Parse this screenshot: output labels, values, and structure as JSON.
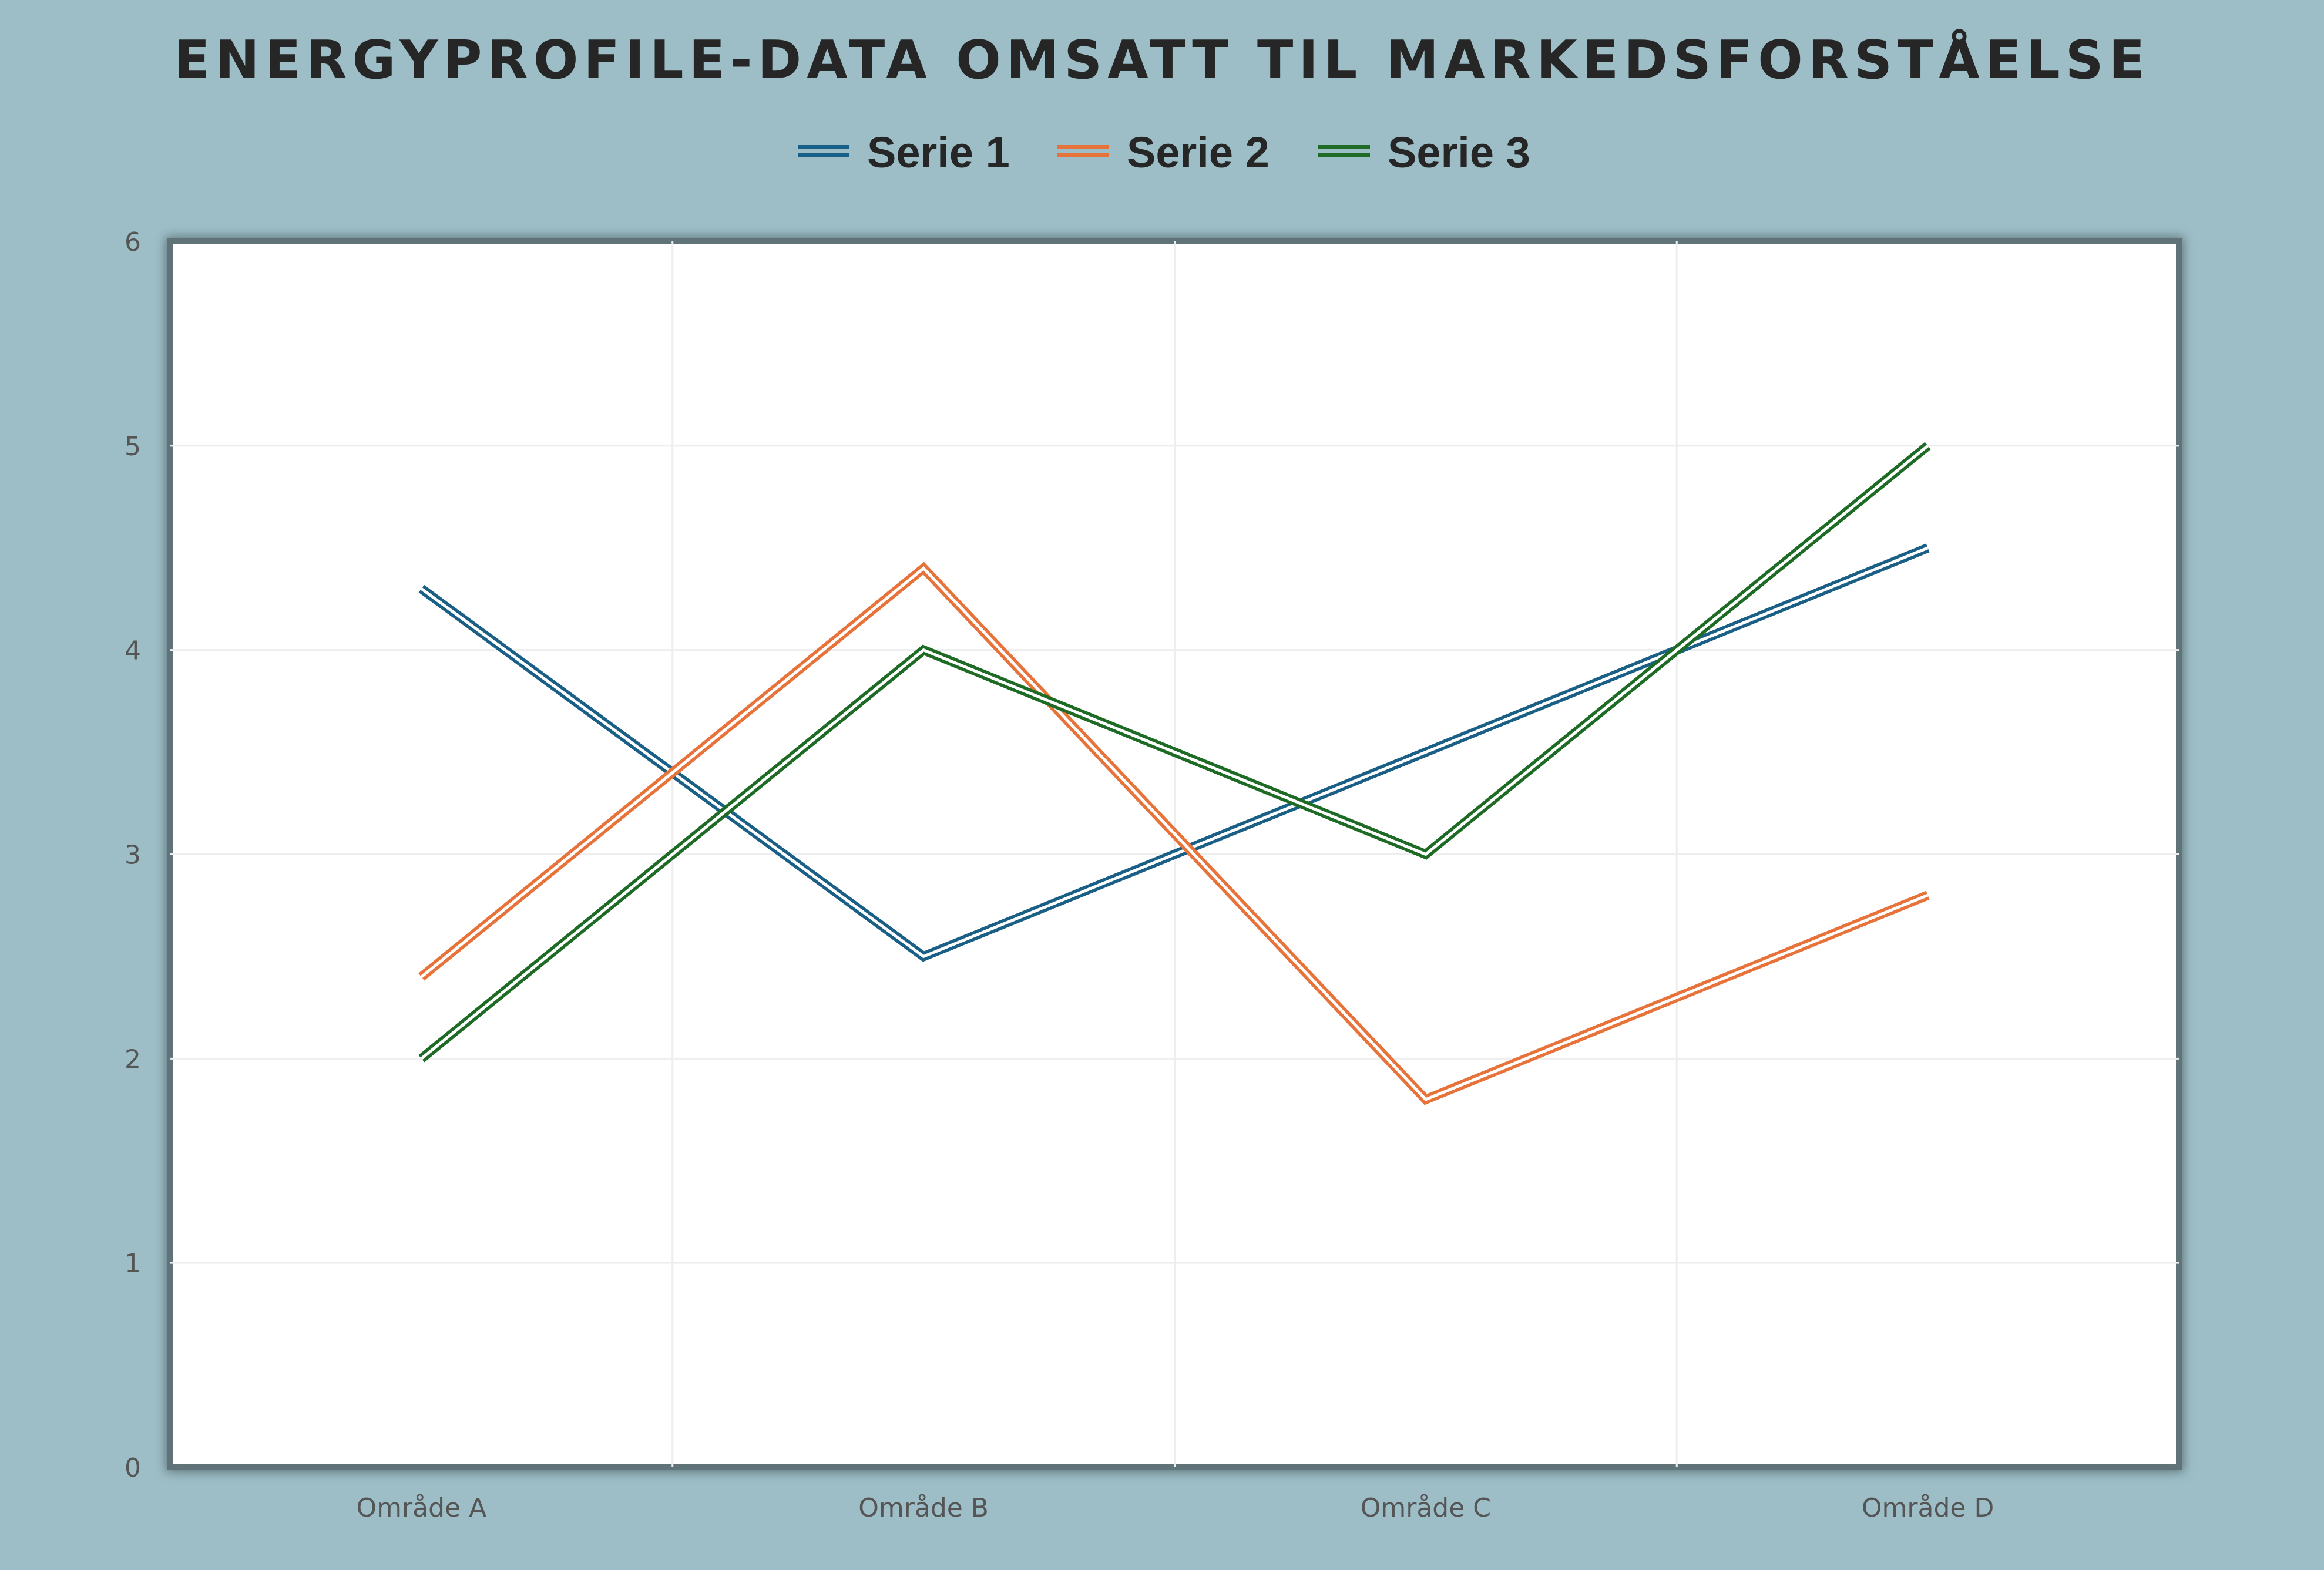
{
  "chart_data": {
    "type": "line",
    "title": "ENERGYPROFILE-DATA OMSATT TIL MARKEDSFORSTÅELSE",
    "categories": [
      "Område A",
      "Område B",
      "Område C",
      "Område D"
    ],
    "series": [
      {
        "name": "Serie 1",
        "color": "#1a5f85",
        "values": [
          4.3,
          2.5,
          3.5,
          4.5
        ]
      },
      {
        "name": "Serie 2",
        "color": "#e8733a",
        "values": [
          2.4,
          4.4,
          1.8,
          2.8
        ]
      },
      {
        "name": "Serie 3",
        "color": "#1e6b25",
        "values": [
          2.0,
          4.0,
          3.0,
          5.0
        ]
      }
    ],
    "yticks": [
      "0",
      "1",
      "2",
      "3",
      "4",
      "5",
      "6"
    ],
    "ylim": [
      0,
      6
    ],
    "xlabel": "",
    "ylabel": "",
    "grid": true,
    "legend": "top-center"
  }
}
